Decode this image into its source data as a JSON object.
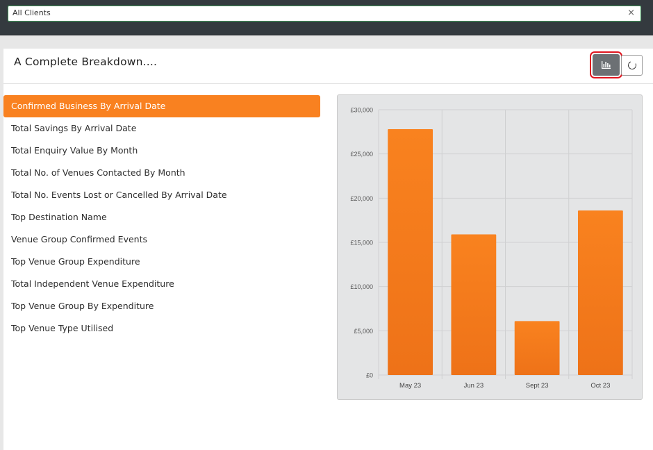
{
  "client_select": {
    "value": "All Clients",
    "clear_icon": "×"
  },
  "panel": {
    "title": "A Complete Breakdown....",
    "chart_button_icon": "bar-chart-icon",
    "refresh_button_icon": "refresh-icon"
  },
  "menu": {
    "items": [
      "Confirmed Business By Arrival Date",
      "Total Savings By Arrival Date",
      "Total Enquiry Value By Month",
      "Total No. of Venues Contacted By Month",
      "Total No. Events Lost or Cancelled By Arrival Date",
      "Top Destination Name",
      "Venue Group Confirmed Events",
      "Top Venue Group Expenditure",
      "Total Independent Venue Expenditure",
      "Top Venue Group By Expenditure",
      "Top Venue Type Utilised"
    ],
    "active_index": 0
  },
  "colors": {
    "accent": "#f98120",
    "bar": "#f5791c",
    "topbar": "#343a3f",
    "highlight": "#e0141e"
  },
  "chart_data": {
    "type": "bar",
    "categories": [
      "May 23",
      "Jun 23",
      "Sept 23",
      "Oct 23"
    ],
    "values": [
      27800,
      15900,
      6100,
      18600
    ],
    "ylim": [
      0,
      30000
    ],
    "yticks": [
      "£0",
      "£5,000",
      "£10,000",
      "£15,000",
      "£20,000",
      "£25,000",
      "£30,000"
    ],
    "grid": true,
    "legend": "none"
  }
}
